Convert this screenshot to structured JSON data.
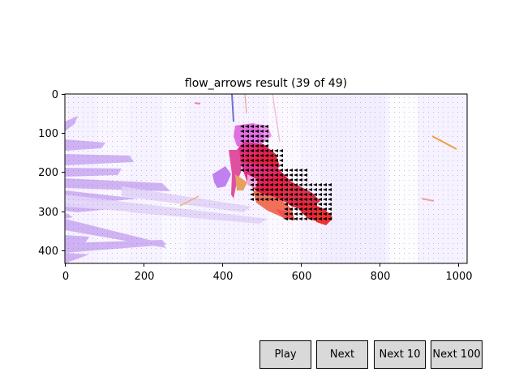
{
  "window": {
    "title": "flow_arrows result (39 of 49)"
  },
  "plot": {
    "x_ticks": [
      "0",
      "200",
      "400",
      "600",
      "800",
      "1000"
    ],
    "y_ticks": [
      "0",
      "100",
      "200",
      "300",
      "400"
    ]
  },
  "controls": {
    "play_label": "Play",
    "next_label": "Next",
    "next10_label": "Next 10",
    "next100_label": "Next 100"
  },
  "colors": {
    "accent_pink": "#e0208a",
    "accent_red": "#e8283c",
    "accent_purple": "#c080f0",
    "button_bg": "#d9d9d9"
  }
}
